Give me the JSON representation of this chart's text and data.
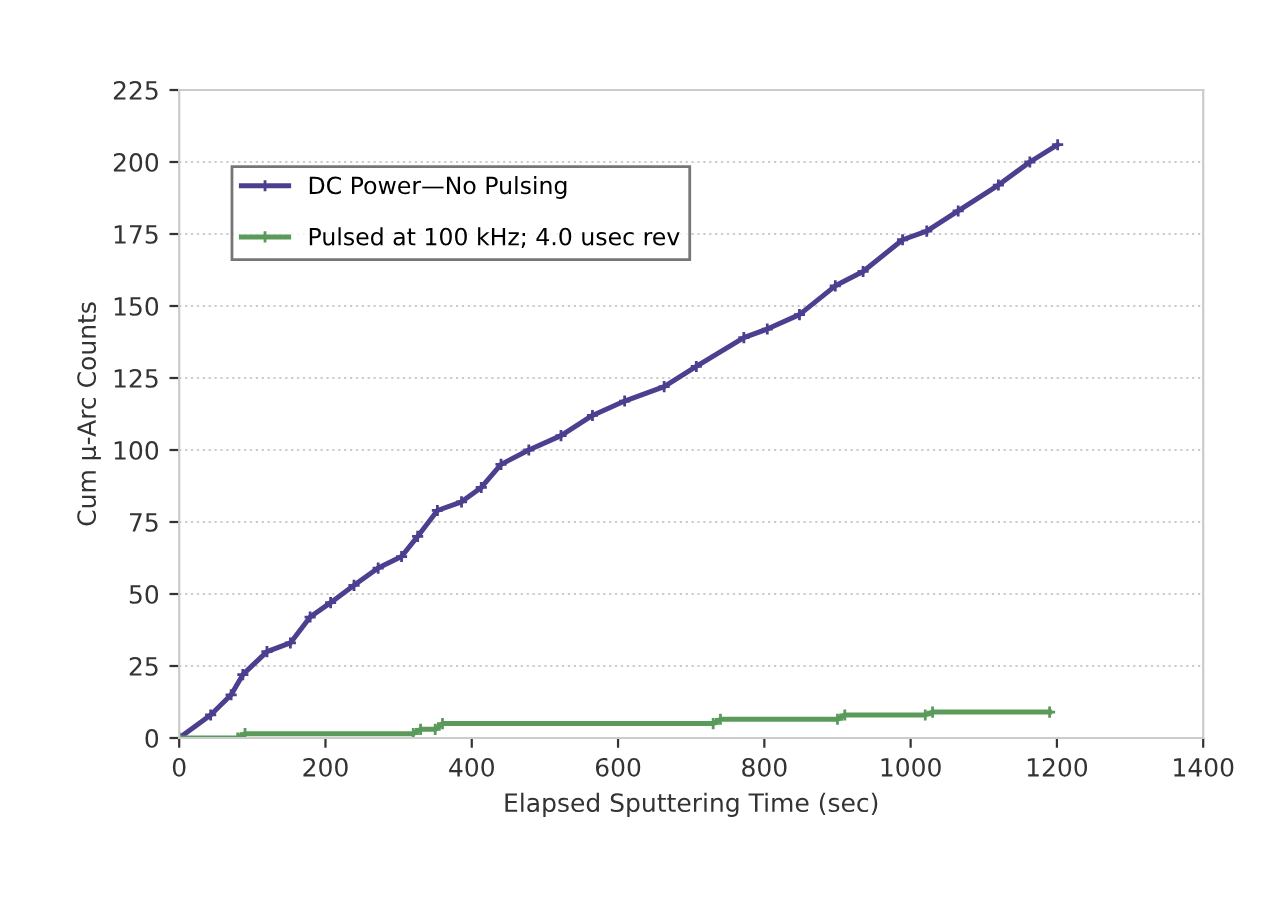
{
  "chart_data": {
    "type": "line",
    "xlabel": "Elapsed Sputtering Time (sec)",
    "ylabel": "Cum µ-Arc Counts",
    "xlim": [
      0,
      1400
    ],
    "xticks": [
      0,
      200,
      400,
      600,
      800,
      1000,
      1200,
      1400
    ],
    "ylim": [
      0,
      225
    ],
    "yticks": [
      0,
      25,
      50,
      75,
      100,
      125,
      150,
      175,
      200,
      225
    ],
    "grid": "y",
    "legend": "top left",
    "marker": "cross",
    "line_style": "solid",
    "series": [
      {
        "name": "DC Power—No Pulsing",
        "color": "#4b3f8f",
        "x": [
          0,
          43,
          71,
          87,
          120,
          152,
          179,
          207,
          239,
          272,
          304,
          326,
          353,
          386,
          413,
          440,
          478,
          522,
          565,
          609,
          663,
          707,
          772,
          804,
          848,
          897,
          935,
          989,
          1022,
          1065,
          1120,
          1163,
          1201
        ],
        "values": [
          0,
          8,
          15,
          22,
          30,
          33,
          42,
          47,
          53,
          59,
          63,
          70,
          79,
          82,
          87,
          95,
          100,
          105,
          112,
          117,
          122,
          129,
          139,
          142,
          147,
          157,
          162,
          173,
          176,
          183,
          192,
          200,
          206
        ]
      },
      {
        "name": "Pulsed at 100 kHz; 4.0 usec rev",
        "color": "#5a9a5a",
        "x": [
          0,
          80,
          90,
          320,
          330,
          350,
          360,
          730,
          740,
          900,
          910,
          1020,
          1030,
          1190
        ],
        "values": [
          0,
          0,
          1.5,
          1.5,
          3,
          3,
          5,
          5,
          6.5,
          6.5,
          8,
          8,
          9,
          9
        ]
      }
    ]
  }
}
